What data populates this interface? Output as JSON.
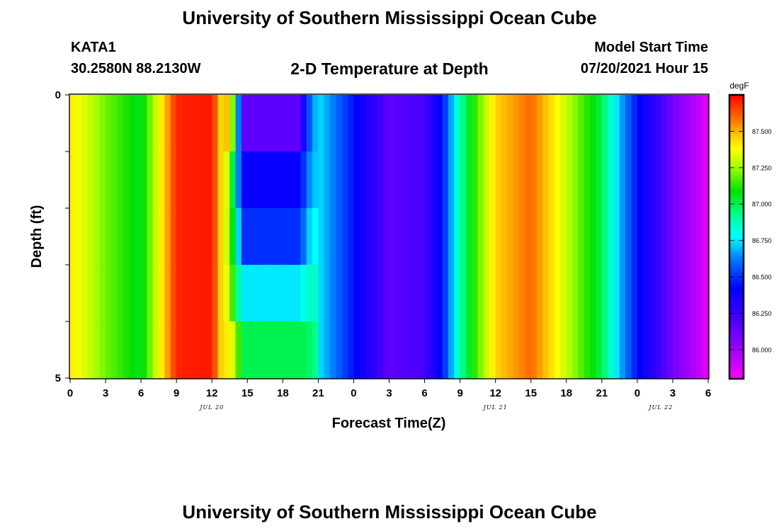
{
  "header": {
    "title": "University of Southern Mississippi Ocean Cube",
    "station_id": "KATA1",
    "station_coords": "30.2580N  88.2130W",
    "chart_title": "2-D Temperature at Depth",
    "model_start_label": "Model Start Time",
    "model_start_value": "07/20/2021 Hour 15"
  },
  "footer": {
    "title": "University of Southern Mississippi Ocean Cube"
  },
  "chart_data": {
    "type": "heatmap",
    "title": "2-D Temperature at Depth",
    "xlabel": "Forecast Time(Z)",
    "ylabel": "Depth (ft)",
    "x_unit": "hours from 07/20/2021 00Z",
    "xlim": [
      0,
      54
    ],
    "ylim": [
      0,
      5
    ],
    "y_inverted": true,
    "x_tick_labels": [
      "0",
      "3",
      "6",
      "9",
      "12",
      "15",
      "18",
      "21",
      "0",
      "3",
      "6",
      "9",
      "12",
      "15",
      "18",
      "21",
      "0",
      "3",
      "6"
    ],
    "y_tick_labels": [
      "0",
      "5"
    ],
    "y_ticks": [
      0,
      1,
      2,
      3,
      4,
      5
    ],
    "date_labels": [
      {
        "text": "JUL 20",
        "x": 12
      },
      {
        "text": "JUL 21",
        "x": 36
      },
      {
        "text": "JUL 22",
        "x": 50
      }
    ],
    "colorbar": {
      "unit": "degF",
      "min": 85.8,
      "max": 87.75,
      "tick_labels": [
        "86.000",
        "86.250",
        "86.500",
        "86.750",
        "87.000",
        "87.250",
        "87.500"
      ],
      "ticks": [
        86.0,
        86.25,
        86.5,
        86.75,
        87.0,
        87.25,
        87.5
      ],
      "colormap": "rainbow (magenta-blue-cyan-green-yellow-red)"
    },
    "depth_bands": [
      0,
      1,
      2,
      3,
      4,
      5
    ],
    "uniform_profile": {
      "hours": [
        0,
        3,
        6,
        7.5,
        9,
        12,
        14,
        15,
        17,
        19,
        21,
        24,
        27,
        30,
        31.5,
        33,
        36,
        39,
        42,
        45,
        46.5,
        48,
        51,
        54
      ],
      "temps": [
        87.42,
        87.2,
        87.05,
        87.35,
        87.7,
        87.72,
        87.0,
        86.5,
        86.3,
        86.55,
        86.75,
        86.45,
        86.15,
        86.2,
        86.45,
        86.9,
        87.45,
        87.6,
        87.3,
        87.0,
        86.7,
        86.45,
        86.1,
        85.85
      ]
    },
    "anomaly": {
      "x_range": [
        13.0,
        21.0
      ],
      "profiles_by_band": [
        {
          "hours": [
            13.0,
            14.0,
            14.5,
            19.5,
            20.0,
            21.0
          ],
          "temps": [
            87.6,
            87.1,
            86.15,
            86.15,
            86.5,
            86.75
          ]
        },
        {
          "hours": [
            13.0,
            14.0,
            14.5,
            19.5,
            20.0,
            21.0
          ],
          "temps": [
            87.5,
            86.85,
            86.4,
            86.4,
            86.6,
            86.75
          ]
        },
        {
          "hours": [
            13.0,
            14.0,
            14.5,
            19.5,
            20.0,
            21.0
          ],
          "temps": [
            87.45,
            86.95,
            86.5,
            86.5,
            86.7,
            86.8
          ]
        },
        {
          "hours": [
            13.0,
            14.0,
            14.5,
            19.5,
            20.0,
            21.0
          ],
          "temps": [
            87.45,
            87.05,
            86.75,
            86.75,
            86.85,
            86.85
          ]
        },
        {
          "hours": [
            13.0,
            14.0,
            14.5,
            19.5,
            20.0,
            21.0
          ],
          "temps": [
            87.45,
            87.3,
            87.0,
            87.0,
            87.0,
            86.9
          ]
        }
      ]
    }
  }
}
